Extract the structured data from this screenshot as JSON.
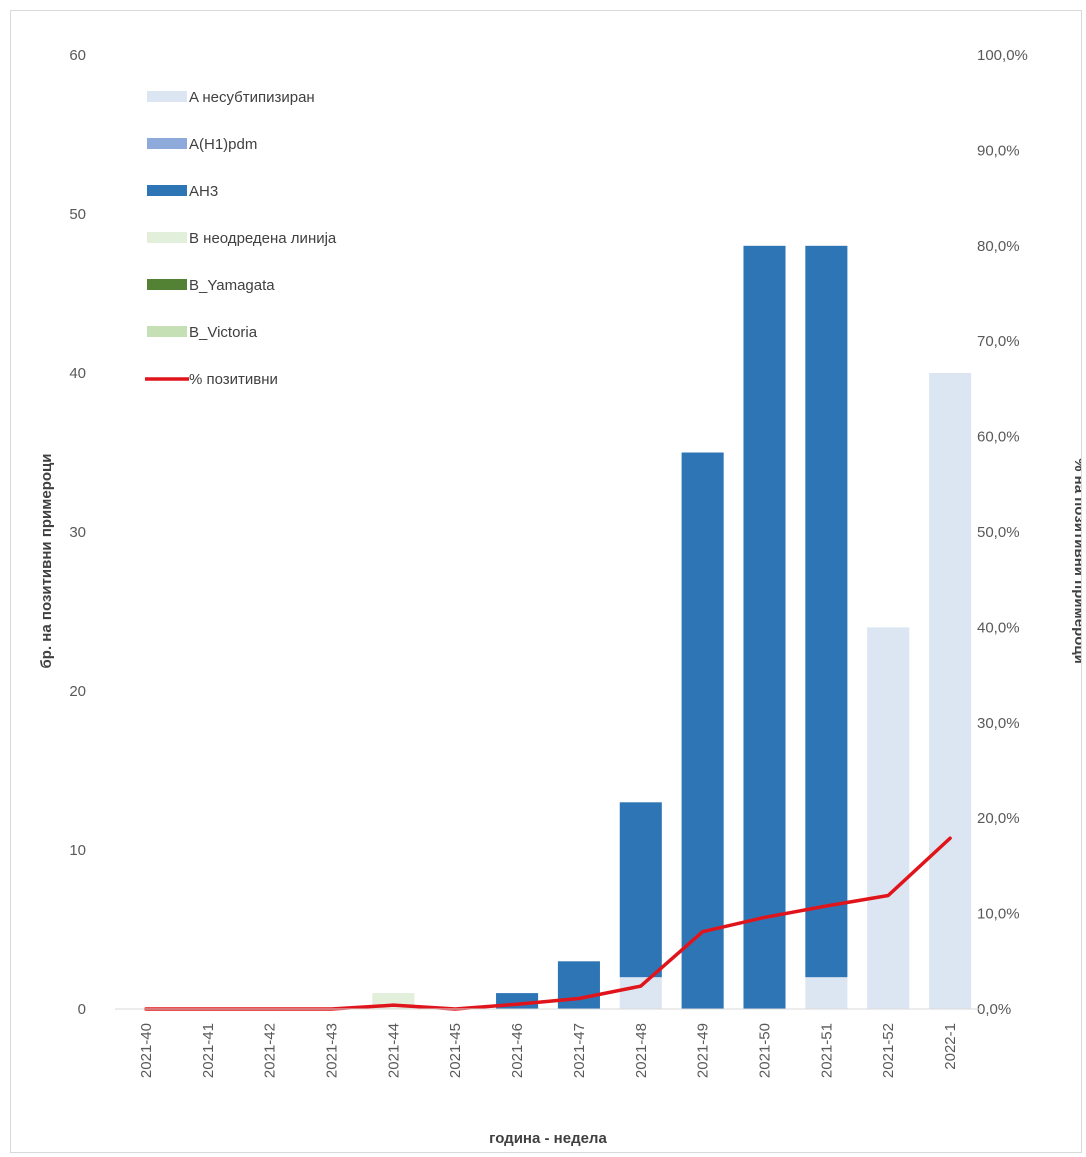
{
  "chart_data": {
    "type": "bar",
    "stacked": true,
    "title": "",
    "xlabel": "година - недела",
    "ylabel": "бр. на позитивни примероци",
    "y2label": "% на позитивни примероци",
    "categories": [
      "2021-40",
      "2021-41",
      "2021-42",
      "2021-43",
      "2021-44",
      "2021-45",
      "2021-46",
      "2021-47",
      "2021-48",
      "2021-49",
      "2021-50",
      "2021-51",
      "2021-52",
      "2022-1"
    ],
    "ylim": [
      0,
      60
    ],
    "yticks": [
      "0",
      "10",
      "20",
      "30",
      "40",
      "50",
      "60"
    ],
    "y2lim": [
      0,
      100
    ],
    "y2ticks": [
      "0,0%",
      "10,0%",
      "20,0%",
      "30,0%",
      "40,0%",
      "50,0%",
      "60,0%",
      "70,0%",
      "80,0%",
      "90,0%",
      "100,0%"
    ],
    "grid": false,
    "legend_position": "top-left",
    "series": [
      {
        "name": "A несубтипизиран",
        "kind": "bar",
        "color": "#dce6f2",
        "values": [
          0,
          0,
          0,
          0,
          0,
          0,
          0,
          0,
          2,
          0,
          0,
          2,
          24,
          40
        ]
      },
      {
        "name": "A(H1)pdm",
        "kind": "bar",
        "color": "#8eaadb",
        "values": [
          0,
          0,
          0,
          0,
          0,
          0,
          0,
          0,
          0,
          0,
          0,
          0,
          0,
          0
        ]
      },
      {
        "name": "AH3",
        "kind": "bar",
        "color": "#2e75b6",
        "values": [
          0,
          0,
          0,
          0,
          0,
          0,
          1,
          3,
          11,
          35,
          48,
          46,
          0,
          0
        ]
      },
      {
        "name": "B неодредена линија",
        "kind": "bar",
        "color": "#e2efda",
        "values": [
          0,
          0,
          0,
          0,
          1,
          0,
          0,
          0,
          0,
          0,
          0,
          0,
          0,
          0
        ]
      },
      {
        "name": "B_Yamagata",
        "kind": "bar",
        "color": "#548235",
        "values": [
          0,
          0,
          0,
          0,
          0,
          0,
          0,
          0,
          0,
          0,
          0,
          0,
          0,
          0
        ]
      },
      {
        "name": "B_Victoria",
        "kind": "bar",
        "color": "#c5e0b4",
        "values": [
          0,
          0,
          0,
          0,
          0,
          0,
          0,
          0,
          0,
          0,
          0,
          0,
          0,
          0
        ]
      },
      {
        "name": "% позитивни",
        "kind": "line",
        "axis": "right",
        "color": "#e0151b",
        "values": [
          0,
          0,
          0,
          0,
          0.4,
          0,
          0.5,
          1.1,
          2.4,
          8.1,
          9.6,
          10.8,
          11.9,
          17.9
        ]
      }
    ]
  }
}
